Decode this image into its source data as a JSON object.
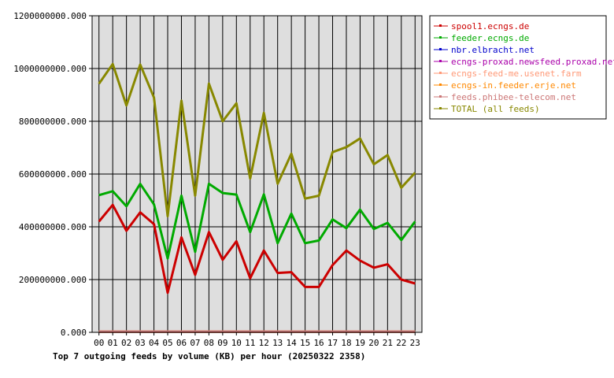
{
  "chart_data": {
    "type": "line",
    "title": "Top 7 outgoing feeds by volume (KB) per hour (20250322 2358)",
    "xlabel": "",
    "ylabel": "",
    "ylim": [
      0,
      1200000000
    ],
    "y_ticks": [
      "0.000",
      "200000000.000",
      "400000000.000",
      "600000000.000",
      "800000000.000",
      "1000000000.000",
      "1200000000.000"
    ],
    "y_tick_values": [
      0,
      200000000,
      400000000,
      600000000,
      800000000,
      1000000000,
      1200000000
    ],
    "categories": [
      "00",
      "01",
      "02",
      "03",
      "04",
      "05",
      "06",
      "07",
      "08",
      "09",
      "10",
      "11",
      "12",
      "13",
      "14",
      "15",
      "16",
      "17",
      "18",
      "19",
      "20",
      "21",
      "22",
      "23"
    ],
    "grid": true,
    "legend_position": "top-right",
    "series": [
      {
        "name": "spool1.ecngs.de",
        "color": "#cc0000",
        "values": [
          420000000,
          483000000,
          385000000,
          455000000,
          410000000,
          150000000,
          360000000,
          218000000,
          380000000,
          275000000,
          345000000,
          205000000,
          310000000,
          225000000,
          228000000,
          172000000,
          172000000,
          255000000,
          310000000,
          272000000,
          245000000,
          258000000,
          200000000,
          185000000
        ]
      },
      {
        "name": "feeder.ecngs.de",
        "color": "#00aa00",
        "values": [
          520000000,
          535000000,
          478000000,
          563000000,
          485000000,
          280000000,
          518000000,
          305000000,
          563000000,
          528000000,
          522000000,
          380000000,
          523000000,
          338000000,
          450000000,
          338000000,
          348000000,
          428000000,
          395000000,
          465000000,
          392000000,
          415000000,
          350000000,
          420000000
        ]
      },
      {
        "name": "nbr.elbracht.net",
        "color": "#0000cc",
        "values": [
          2000000,
          2000000,
          2000000,
          2000000,
          2000000,
          2000000,
          2000000,
          2000000,
          2000000,
          2000000,
          2000000,
          2000000,
          2000000,
          2000000,
          2000000,
          2000000,
          2000000,
          2000000,
          2000000,
          2000000,
          2000000,
          2000000,
          2000000,
          2000000
        ]
      },
      {
        "name": "ecngs-proxad.newsfeed.proxad.net",
        "color": "#aa00aa",
        "values": [
          2000000,
          2000000,
          2000000,
          2000000,
          2000000,
          2000000,
          2000000,
          2000000,
          2000000,
          2000000,
          2000000,
          2000000,
          2000000,
          2000000,
          2000000,
          2000000,
          2000000,
          2000000,
          2000000,
          2000000,
          2000000,
          2000000,
          2000000,
          2000000
        ]
      },
      {
        "name": "ecngs-feed-me.usenet.farm",
        "color": "#ff9977",
        "values": [
          2000000,
          2000000,
          2000000,
          2000000,
          2000000,
          2000000,
          2000000,
          2000000,
          2000000,
          2000000,
          2000000,
          2000000,
          2000000,
          2000000,
          2000000,
          2000000,
          2000000,
          2000000,
          2000000,
          2000000,
          2000000,
          2000000,
          2000000,
          2000000
        ]
      },
      {
        "name": "ecngs-in.feeder.erje.net",
        "color": "#ff8800",
        "values": [
          2000000,
          2000000,
          2000000,
          2000000,
          2000000,
          2000000,
          2000000,
          2000000,
          2000000,
          2000000,
          2000000,
          2000000,
          2000000,
          2000000,
          2000000,
          2000000,
          2000000,
          2000000,
          2000000,
          2000000,
          2000000,
          2000000,
          2000000,
          2000000
        ]
      },
      {
        "name": "feeds.phibee-telecom.net",
        "color": "#cc7777",
        "values": [
          2000000,
          2000000,
          2000000,
          2000000,
          2000000,
          2000000,
          2000000,
          2000000,
          2000000,
          2000000,
          2000000,
          2000000,
          2000000,
          2000000,
          2000000,
          2000000,
          2000000,
          2000000,
          2000000,
          2000000,
          2000000,
          2000000,
          2000000,
          2000000
        ]
      },
      {
        "name": "TOTAL (all feeds)",
        "color": "#888800",
        "values": [
          942000000,
          1017000000,
          860000000,
          1015000000,
          890000000,
          440000000,
          878000000,
          518000000,
          943000000,
          800000000,
          868000000,
          583000000,
          832000000,
          563000000,
          677000000,
          507000000,
          518000000,
          683000000,
          702000000,
          735000000,
          637000000,
          672000000,
          548000000,
          605000000
        ]
      }
    ]
  }
}
